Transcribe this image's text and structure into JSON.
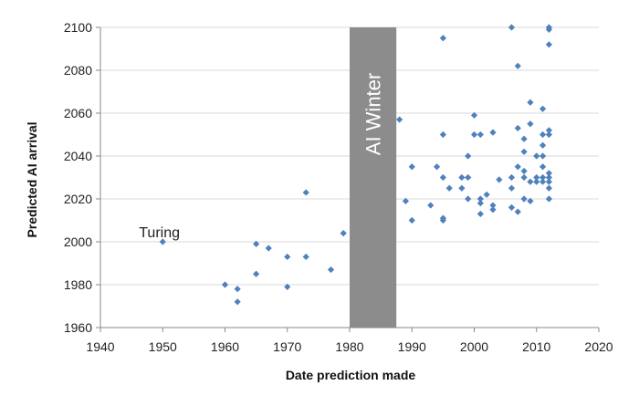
{
  "chart_data": {
    "type": "scatter",
    "title": "",
    "xlabel": "Date prediction made",
    "ylabel": "Predicted AI arrival",
    "xlim": [
      1940,
      2020
    ],
    "ylim": [
      1960,
      2100
    ],
    "x_ticks": [
      1940,
      1950,
      1960,
      1970,
      1980,
      1990,
      2000,
      2010,
      2020
    ],
    "y_ticks": [
      1960,
      1980,
      2000,
      2020,
      2040,
      2060,
      2080,
      2100
    ],
    "grid": "horizontal",
    "legend": "none",
    "marker_color": "#4f81bd",
    "band": {
      "label": "AI Winter",
      "x_start": 1980,
      "x_end": 1987.5,
      "color": "#8c8c8c"
    },
    "annotations": [
      {
        "text": "Turing",
        "x": 1950,
        "y": 2000
      }
    ],
    "series": [
      {
        "points": [
          [
            1950,
            2000
          ],
          [
            1960,
            1980
          ],
          [
            1962,
            1978
          ],
          [
            1962,
            1972
          ],
          [
            1965,
            1999
          ],
          [
            1965,
            1985
          ],
          [
            1967,
            1997
          ],
          [
            1970,
            1993
          ],
          [
            1970,
            1979
          ],
          [
            1973,
            2023
          ],
          [
            1973,
            1993
          ],
          [
            1977,
            1987
          ],
          [
            1979,
            2004
          ],
          [
            1988,
            2057
          ],
          [
            1989,
            2019
          ],
          [
            1990,
            2035
          ],
          [
            1990,
            2010
          ],
          [
            1993,
            2017
          ],
          [
            1994,
            2035
          ],
          [
            1995,
            2095
          ],
          [
            1995,
            2050
          ],
          [
            1995,
            2030
          ],
          [
            1995,
            2011
          ],
          [
            1995,
            2010
          ],
          [
            1996,
            2025
          ],
          [
            1998,
            2030
          ],
          [
            1998,
            2025
          ],
          [
            1999,
            2040
          ],
          [
            1999,
            2030
          ],
          [
            1999,
            2020
          ],
          [
            2000,
            2059
          ],
          [
            2000,
            2050
          ],
          [
            2001,
            2050
          ],
          [
            2001,
            2020
          ],
          [
            2001,
            2018
          ],
          [
            2001,
            2013
          ],
          [
            2002,
            2022
          ],
          [
            2003,
            2051
          ],
          [
            2003,
            2017
          ],
          [
            2003,
            2015
          ],
          [
            2004,
            2029
          ],
          [
            2006,
            2100
          ],
          [
            2006,
            2030
          ],
          [
            2006,
            2025
          ],
          [
            2006,
            2016
          ],
          [
            2007,
            2082
          ],
          [
            2007,
            2053
          ],
          [
            2007,
            2035
          ],
          [
            2007,
            2014
          ],
          [
            2008,
            2048
          ],
          [
            2008,
            2042
          ],
          [
            2008,
            2033
          ],
          [
            2008,
            2030
          ],
          [
            2008,
            2020
          ],
          [
            2009,
            2065
          ],
          [
            2009,
            2055
          ],
          [
            2009,
            2028
          ],
          [
            2009,
            2019
          ],
          [
            2010,
            2040
          ],
          [
            2010,
            2030
          ],
          [
            2010,
            2028
          ],
          [
            2011,
            2062
          ],
          [
            2011,
            2050
          ],
          [
            2011,
            2045
          ],
          [
            2011,
            2040
          ],
          [
            2011,
            2035
          ],
          [
            2011,
            2030
          ],
          [
            2011,
            2028
          ],
          [
            2012,
            2100
          ],
          [
            2012,
            2099
          ],
          [
            2012,
            2092
          ],
          [
            2012,
            2052
          ],
          [
            2012,
            2050
          ],
          [
            2012,
            2032
          ],
          [
            2012,
            2030
          ],
          [
            2012,
            2028
          ],
          [
            2012,
            2025
          ],
          [
            2012,
            2020
          ]
        ]
      }
    ]
  }
}
